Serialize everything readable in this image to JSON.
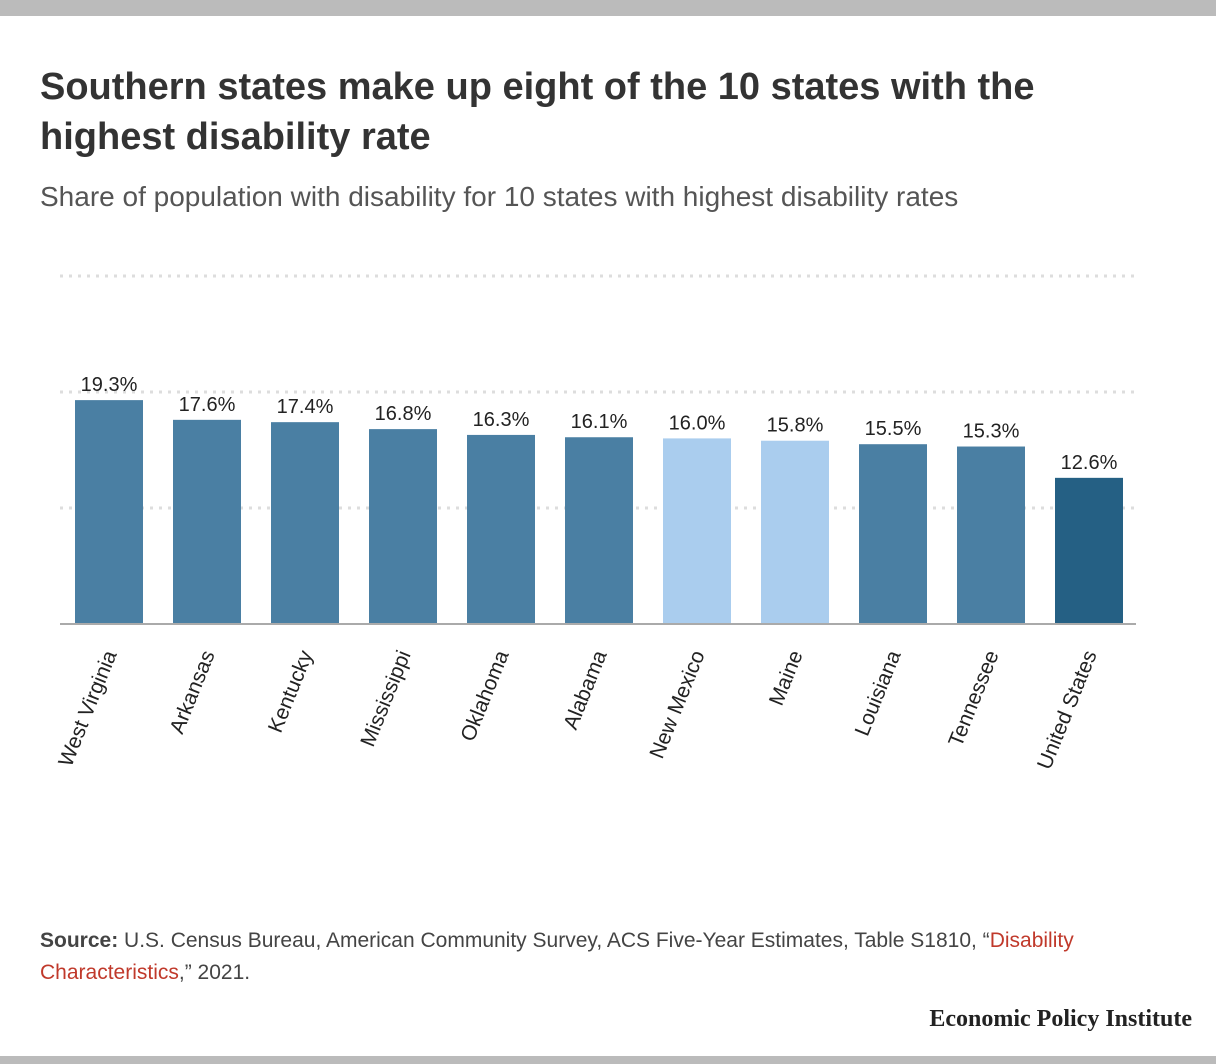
{
  "title": "Southern states make up eight of the 10 states with the highest disability rate",
  "subtitle": "Share of population with disability for 10 states with highest disability rates",
  "source": {
    "label": "Source:",
    "text_before": " U.S. Census Bureau, American Community Survey, ACS Five-Year Estimates, Table S1810, “",
    "link_text": "Disability Characteristics",
    "text_after": ",” 2021."
  },
  "brand": "Economic Policy Institute",
  "colors": {
    "southern": "#4a7fa3",
    "non_southern": "#aacdee",
    "national": "#256084",
    "link": "#c0392b",
    "grid": "#dddddd",
    "axis": "#aaaaaa"
  },
  "chart_data": {
    "type": "bar",
    "categories": [
      "West Virginia",
      "Arkansas",
      "Kentucky",
      "Mississippi",
      "Oklahoma",
      "Alabama",
      "New Mexico",
      "Maine",
      "Louisiana",
      "Tennessee",
      "United States"
    ],
    "values": [
      19.3,
      17.6,
      17.4,
      16.8,
      16.3,
      16.1,
      16.0,
      15.8,
      15.5,
      15.3,
      12.6
    ],
    "value_labels": [
      "19.3%",
      "17.6%",
      "17.4%",
      "16.8%",
      "16.3%",
      "16.1%",
      "16.0%",
      "15.8%",
      "15.5%",
      "15.3%",
      "12.6%"
    ],
    "groups": [
      "southern",
      "southern",
      "southern",
      "southern",
      "southern",
      "southern",
      "non_southern",
      "non_southern",
      "southern",
      "southern",
      "national"
    ],
    "ylim": [
      0,
      30
    ],
    "gridlines": [
      10,
      20,
      30
    ],
    "grid": true,
    "legend": false,
    "xlabel": "",
    "ylabel": ""
  }
}
